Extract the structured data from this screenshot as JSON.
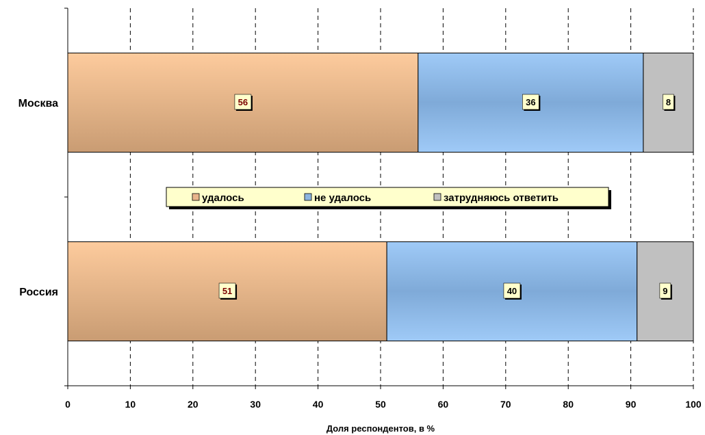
{
  "chart_data": {
    "type": "bar",
    "orientation": "horizontal",
    "stacked": true,
    "categories": [
      "Москва",
      "Россия"
    ],
    "series": [
      {
        "name": "удалось",
        "values": [
          56,
          51
        ],
        "color": "#e8b48c",
        "label_color": "#7a0000"
      },
      {
        "name": "не удалось",
        "values": [
          36,
          40
        ],
        "color": "#8cb4e0",
        "label_color": "#000000"
      },
      {
        "name": "затрудняюсь ответить",
        "values": [
          8,
          9
        ],
        "color": "#c0c0c0",
        "label_color": "#000000"
      }
    ],
    "xlim": [
      0,
      100
    ],
    "xticks": [
      0,
      10,
      20,
      30,
      40,
      50,
      60,
      70,
      80,
      90,
      100
    ],
    "xlabel": "Доля респондентов, в %",
    "ylabel": "",
    "grid": "vertical-dashed",
    "legend_position": "center",
    "data_label_bg": "#ffffcc",
    "legend_bg": "#ffffcc"
  }
}
